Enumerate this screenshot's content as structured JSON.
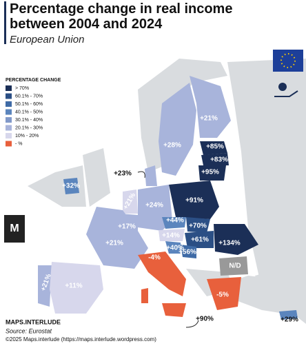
{
  "header": {
    "title": "Percentage change in real income between 2004 and 2024",
    "subtitle": "European Union"
  },
  "legend": {
    "title": "PERCENTAGE CHANGE",
    "items": [
      {
        "label": "> 70%",
        "color": "#1b2f57"
      },
      {
        "label": "60.1% - 70%",
        "color": "#2b4f85"
      },
      {
        "label": "50.1% - 60%",
        "color": "#3f6ba6"
      },
      {
        "label": "40.1% - 50%",
        "color": "#5b85bd"
      },
      {
        "label": "30.1% - 40%",
        "color": "#8199c9"
      },
      {
        "label": "20.1% - 30%",
        "color": "#a8b4db"
      },
      {
        "label": "10% - 20%",
        "color": "#d7d7ec"
      },
      {
        "label": "- %",
        "color": "#e8603c"
      }
    ]
  },
  "labels": [
    "+21%",
    "+28%",
    "+85%",
    "+83%",
    "+95%",
    "+23%",
    "+32%",
    "+21%",
    "+24%",
    "+91%",
    "+17%",
    "+44%",
    "+70%",
    "+14%",
    "+61%",
    "+134%",
    "+40%",
    "+21%",
    "+56%",
    "-4%",
    "N/D",
    "+21%",
    "+11%",
    "-5%",
    "+90%",
    "+29%"
  ],
  "footer": {
    "brand": "MAPS.INTERLUDE",
    "source": "Source: Eurostat",
    "credit": "©2025 Maps.interlude (https://maps.interlude.wordpress.com)"
  }
}
